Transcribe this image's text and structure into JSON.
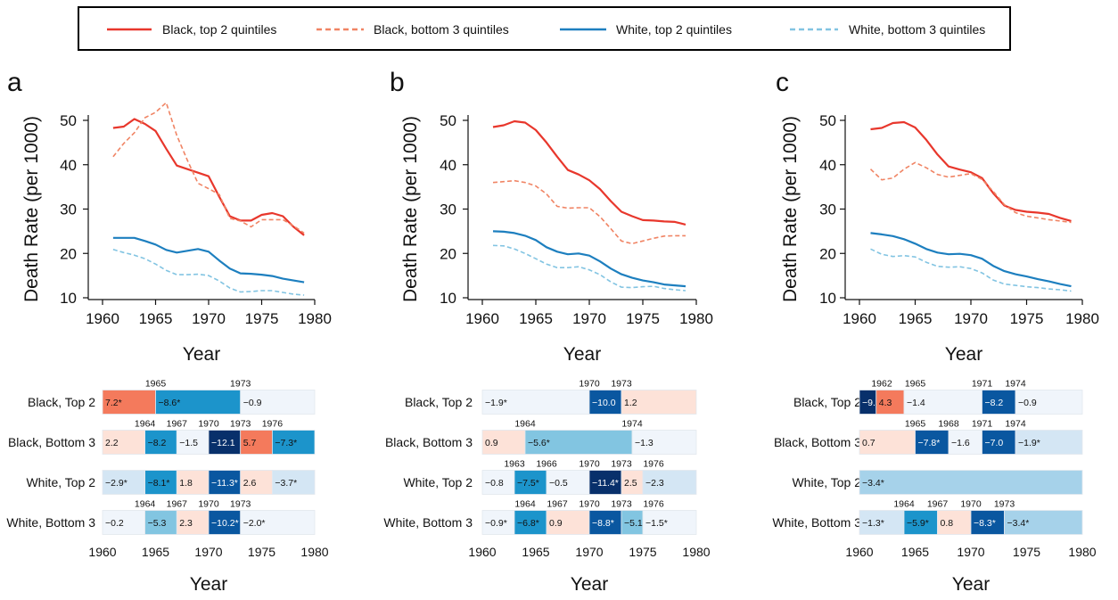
{
  "legend": [
    {
      "label": "Black, top 2 quintiles",
      "color": "#e8372c",
      "dash": false
    },
    {
      "label": "Black, bottom 3 quintiles",
      "color": "#f08464",
      "dash": true
    },
    {
      "label": "White, top 2 quintiles",
      "color": "#1d7fbf",
      "dash": false
    },
    {
      "label": "White, bottom 3 quintiles",
      "color": "#82c4e2",
      "dash": true
    }
  ],
  "seg_colors": {
    "pos_strong": "#f47a5c",
    "pos_light": "#fde2d8",
    "neg_vlight": "#f0f5fb",
    "neg_light": "#d4e6f4",
    "neg_mid1": "#a6d2ea",
    "neg_mid2": "#82c5e1",
    "neg_mid3": "#1c94cb",
    "neg_dark": "#0a57a0",
    "neg_darkest": "#08306b"
  },
  "chart_data": [
    {
      "type": "line",
      "panel_label": "a",
      "xlabel": "Year",
      "ylabel": "Death Rate (per 1000)",
      "xlim": [
        1960,
        1980
      ],
      "ylim": [
        10,
        50
      ],
      "xticks": [
        1960,
        1965,
        1970,
        1975,
        1980
      ],
      "yticks": [
        10,
        20,
        30,
        40,
        50
      ],
      "x": [
        1961,
        1962,
        1963,
        1964,
        1965,
        1966,
        1967,
        1968,
        1969,
        1970,
        1971,
        1972,
        1973,
        1974,
        1975,
        1976,
        1977,
        1978,
        1979
      ],
      "series": [
        {
          "name": "Black, top 2 quintiles",
          "values": [
            48.3,
            48.6,
            50.3,
            49.2,
            47.6,
            43.6,
            39.8,
            39.0,
            38.2,
            37.4,
            32.8,
            28.4,
            27.4,
            27.4,
            28.7,
            29.1,
            28.4,
            26.0,
            24.1
          ]
        },
        {
          "name": "Black, bottom 3 quintiles",
          "values": [
            41.8,
            44.8,
            47.2,
            50.6,
            51.8,
            54.0,
            46.6,
            41.0,
            35.8,
            34.6,
            33.3,
            27.9,
            27.3,
            26.0,
            27.6,
            27.6,
            27.6,
            26.2,
            24.6
          ]
        },
        {
          "name": "White, top 2 quintiles",
          "values": [
            23.5,
            23.5,
            23.5,
            22.8,
            22.0,
            20.8,
            20.2,
            20.6,
            21.0,
            20.4,
            18.4,
            16.6,
            15.5,
            15.4,
            15.2,
            14.9,
            14.3,
            13.9,
            13.5
          ]
        },
        {
          "name": "White, bottom 3 quintiles",
          "values": [
            20.9,
            20.2,
            19.6,
            18.8,
            17.6,
            16.2,
            15.2,
            15.2,
            15.3,
            15.0,
            13.8,
            12.2,
            11.3,
            11.4,
            11.6,
            11.6,
            11.2,
            10.8,
            10.6
          ]
        }
      ],
      "segments": {
        "xlabel": "Year",
        "xlim": [
          1960,
          1980
        ],
        "xticks": [
          1960,
          1965,
          1970,
          1975,
          1980
        ],
        "rows": [
          {
            "label": "Black, Top 2",
            "breaks": [
              1965,
              1973
            ],
            "segs": [
              {
                "x0": 1960,
                "x1": 1965,
                "text": "7.2*",
                "tone": "pos_strong"
              },
              {
                "x0": 1965,
                "x1": 1973,
                "text": "−8.6*",
                "tone": "neg_mid3"
              },
              {
                "x0": 1973,
                "x1": 1980,
                "text": "−0.9",
                "tone": "neg_vlight"
              }
            ]
          },
          {
            "label": "Black, Bottom 3",
            "breaks": [
              1964,
              1967,
              1970,
              1973,
              1976
            ],
            "segs": [
              {
                "x0": 1960,
                "x1": 1964,
                "text": "2.2",
                "tone": "pos_light"
              },
              {
                "x0": 1964,
                "x1": 1967,
                "text": "−8.2",
                "tone": "neg_mid3"
              },
              {
                "x0": 1967,
                "x1": 1970,
                "text": "−1.5",
                "tone": "neg_vlight"
              },
              {
                "x0": 1970,
                "x1": 1973,
                "text": "−12.1",
                "tone": "neg_darkest"
              },
              {
                "x0": 1973,
                "x1": 1976,
                "text": "5.7",
                "tone": "pos_strong"
              },
              {
                "x0": 1976,
                "x1": 1980,
                "text": "−7.3*",
                "tone": "neg_mid3"
              }
            ]
          },
          {
            "label": "White, Top 2",
            "breaks": [],
            "segs": [
              {
                "x0": 1960,
                "x1": 1964,
                "text": "−2.9*",
                "tone": "neg_light"
              },
              {
                "x0": 1964,
                "x1": 1967,
                "text": "−8.1*",
                "tone": "neg_mid3"
              },
              {
                "x0": 1967,
                "x1": 1970,
                "text": "1.8",
                "tone": "pos_light"
              },
              {
                "x0": 1970,
                "x1": 1973,
                "text": "−11.3*",
                "tone": "neg_dark"
              },
              {
                "x0": 1973,
                "x1": 1976,
                "text": "2.6",
                "tone": "pos_light"
              },
              {
                "x0": 1976,
                "x1": 1980,
                "text": "−3.7*",
                "tone": "neg_light"
              }
            ]
          },
          {
            "label": "White, Bottom 3",
            "breaks": [
              1964,
              1967,
              1970,
              1973
            ],
            "segs": [
              {
                "x0": 1960,
                "x1": 1964,
                "text": "−0.2",
                "tone": "neg_vlight"
              },
              {
                "x0": 1964,
                "x1": 1967,
                "text": "−5.3",
                "tone": "neg_mid2"
              },
              {
                "x0": 1967,
                "x1": 1970,
                "text": "2.3",
                "tone": "pos_light"
              },
              {
                "x0": 1970,
                "x1": 1973,
                "text": "−10.2*",
                "tone": "neg_dark"
              },
              {
                "x0": 1973,
                "x1": 1980,
                "text": "−2.0*",
                "tone": "neg_vlight"
              }
            ]
          }
        ]
      }
    },
    {
      "type": "line",
      "panel_label": "b",
      "xlabel": "Year",
      "ylabel": "Death Rate (per 1000)",
      "xlim": [
        1960,
        1980
      ],
      "ylim": [
        10,
        50
      ],
      "xticks": [
        1960,
        1965,
        1970,
        1975,
        1980
      ],
      "yticks": [
        10,
        20,
        30,
        40,
        50
      ],
      "x": [
        1961,
        1962,
        1963,
        1964,
        1965,
        1966,
        1967,
        1968,
        1969,
        1970,
        1971,
        1972,
        1973,
        1974,
        1975,
        1976,
        1977,
        1978,
        1979
      ],
      "series": [
        {
          "name": "Black, top 2 quintiles",
          "values": [
            48.5,
            48.9,
            49.8,
            49.5,
            47.8,
            45.0,
            41.8,
            38.8,
            37.8,
            36.5,
            34.5,
            31.8,
            29.4,
            28.4,
            27.5,
            27.4,
            27.2,
            27.1,
            26.5
          ]
        },
        {
          "name": "Black, bottom 3 quintiles",
          "values": [
            36.0,
            36.2,
            36.4,
            36.0,
            35.2,
            33.4,
            30.6,
            30.2,
            30.3,
            30.3,
            28.3,
            25.6,
            22.8,
            22.2,
            22.8,
            23.4,
            23.9,
            24.0,
            24.0
          ]
        },
        {
          "name": "White, top 2 quintiles",
          "values": [
            25.0,
            24.9,
            24.6,
            24.0,
            23.0,
            21.4,
            20.4,
            19.8,
            20.0,
            19.5,
            18.2,
            16.6,
            15.3,
            14.5,
            13.9,
            13.5,
            13.0,
            12.8,
            12.6
          ]
        },
        {
          "name": "White, bottom 3 quintiles",
          "values": [
            21.8,
            21.7,
            21.0,
            20.0,
            18.8,
            17.6,
            16.8,
            16.8,
            17.0,
            16.3,
            15.2,
            13.6,
            12.4,
            12.3,
            12.5,
            12.6,
            12.1,
            11.8,
            11.6
          ]
        }
      ],
      "segments": {
        "xlabel": "Year",
        "xlim": [
          1960,
          1980
        ],
        "xticks": [
          1960,
          1965,
          1970,
          1975,
          1980
        ],
        "rows": [
          {
            "label": "Black, Top 2",
            "breaks": [
              1970,
              1973
            ],
            "segs": [
              {
                "x0": 1960,
                "x1": 1970,
                "text": "−1.9*",
                "tone": "neg_vlight"
              },
              {
                "x0": 1970,
                "x1": 1973,
                "text": "−10.0",
                "tone": "neg_dark"
              },
              {
                "x0": 1973,
                "x1": 1980,
                "text": "1.2",
                "tone": "pos_light"
              }
            ]
          },
          {
            "label": "Black, Bottom 3",
            "breaks": [
              1964,
              1974
            ],
            "segs": [
              {
                "x0": 1960,
                "x1": 1964,
                "text": "0.9",
                "tone": "pos_light"
              },
              {
                "x0": 1964,
                "x1": 1974,
                "text": "−5.6*",
                "tone": "neg_mid2"
              },
              {
                "x0": 1974,
                "x1": 1980,
                "text": "−1.3",
                "tone": "neg_vlight"
              }
            ]
          },
          {
            "label": "White, Top 2",
            "breaks": [
              1963,
              1966,
              1970,
              1973,
              1976
            ],
            "segs": [
              {
                "x0": 1960,
                "x1": 1963,
                "text": "−0.8",
                "tone": "neg_vlight"
              },
              {
                "x0": 1963,
                "x1": 1966,
                "text": "−7.5*",
                "tone": "neg_mid3"
              },
              {
                "x0": 1966,
                "x1": 1970,
                "text": "−0.5",
                "tone": "neg_vlight"
              },
              {
                "x0": 1970,
                "x1": 1973,
                "text": "−11.4*",
                "tone": "neg_darkest"
              },
              {
                "x0": 1973,
                "x1": 1975,
                "text": "2.5",
                "tone": "pos_light"
              },
              {
                "x0": 1975,
                "x1": 1980,
                "text": "−2.3",
                "tone": "neg_light"
              }
            ]
          },
          {
            "label": "White, Bottom 3",
            "breaks": [
              1964,
              1967,
              1970,
              1973,
              1976
            ],
            "segs": [
              {
                "x0": 1960,
                "x1": 1963,
                "text": "−0.9*",
                "tone": "neg_vlight"
              },
              {
                "x0": 1963,
                "x1": 1966,
                "text": "−6.8*",
                "tone": "neg_mid3"
              },
              {
                "x0": 1966,
                "x1": 1970,
                "text": "0.9",
                "tone": "pos_light"
              },
              {
                "x0": 1970,
                "x1": 1973,
                "text": "−8.8*",
                "tone": "neg_dark"
              },
              {
                "x0": 1973,
                "x1": 1975,
                "text": "−5.1*",
                "tone": "neg_mid2"
              },
              {
                "x0": 1975,
                "x1": 1980,
                "text": "−1.5*",
                "tone": "neg_vlight"
              }
            ]
          }
        ]
      }
    },
    {
      "type": "line",
      "panel_label": "c",
      "xlabel": "Year",
      "ylabel": "Death Rate (per 1000)",
      "xlim": [
        1960,
        1980
      ],
      "ylim": [
        10,
        50
      ],
      "xticks": [
        1960,
        1965,
        1970,
        1975,
        1980
      ],
      "yticks": [
        10,
        20,
        30,
        40,
        50
      ],
      "x": [
        1961,
        1962,
        1963,
        1964,
        1965,
        1966,
        1967,
        1968,
        1969,
        1970,
        1971,
        1972,
        1973,
        1974,
        1975,
        1976,
        1977,
        1978,
        1979
      ],
      "series": [
        {
          "name": "Black, top 2 quintiles",
          "values": [
            48.0,
            48.3,
            49.4,
            49.6,
            48.4,
            45.6,
            42.3,
            39.6,
            38.9,
            38.3,
            37.0,
            33.6,
            30.8,
            29.8,
            29.4,
            29.2,
            28.9,
            28.0,
            27.3
          ]
        },
        {
          "name": "Black, bottom 3 quintiles",
          "values": [
            39.0,
            36.6,
            37.0,
            39.0,
            40.5,
            39.3,
            37.8,
            37.2,
            37.6,
            38.0,
            36.7,
            34.0,
            31.0,
            29.2,
            28.4,
            28.0,
            27.6,
            27.3,
            27.0
          ]
        },
        {
          "name": "White, top 2 quintiles",
          "values": [
            24.6,
            24.3,
            23.9,
            23.2,
            22.2,
            21.0,
            20.2,
            19.8,
            19.9,
            19.6,
            18.8,
            17.2,
            16.0,
            15.3,
            14.8,
            14.2,
            13.7,
            13.1,
            12.6
          ]
        },
        {
          "name": "White, bottom 3 quintiles",
          "values": [
            21.0,
            19.8,
            19.3,
            19.5,
            19.2,
            18.0,
            17.1,
            16.9,
            17.0,
            16.6,
            15.6,
            14.0,
            13.1,
            12.8,
            12.5,
            12.3,
            12.0,
            11.8,
            11.5
          ]
        }
      ],
      "segments": {
        "xlabel": "Year",
        "xlim": [
          1960,
          1980
        ],
        "xticks": [
          1960,
          1965,
          1970,
          1975,
          1980
        ],
        "rows": [
          {
            "label": "Black, Top 2",
            "breaks": [
              1962,
              1965,
              1971,
              1974
            ],
            "segs": [
              {
                "x0": 1960,
                "x1": 1961.5,
                "text": "−9.3*",
                "tone": "neg_darkest"
              },
              {
                "x0": 1961.5,
                "x1": 1964,
                "text": "4.3",
                "tone": "pos_strong"
              },
              {
                "x0": 1964,
                "x1": 1971,
                "text": "−1.4",
                "tone": "neg_vlight"
              },
              {
                "x0": 1971,
                "x1": 1974,
                "text": "−8.2",
                "tone": "neg_dark"
              },
              {
                "x0": 1974,
                "x1": 1980,
                "text": "−0.9",
                "tone": "neg_vlight"
              }
            ]
          },
          {
            "label": "Black, Bottom 3",
            "breaks": [
              1965,
              1968,
              1971,
              1974
            ],
            "segs": [
              {
                "x0": 1960,
                "x1": 1965,
                "text": "0.7",
                "tone": "pos_light"
              },
              {
                "x0": 1965,
                "x1": 1968,
                "text": "−7.8*",
                "tone": "neg_dark"
              },
              {
                "x0": 1968,
                "x1": 1971,
                "text": "−1.6",
                "tone": "neg_vlight"
              },
              {
                "x0": 1971,
                "x1": 1974,
                "text": "−7.0",
                "tone": "neg_dark"
              },
              {
                "x0": 1974,
                "x1": 1980,
                "text": "−1.9*",
                "tone": "neg_light"
              }
            ]
          },
          {
            "label": "White, Top 2",
            "breaks": [],
            "segs": [
              {
                "x0": 1960,
                "x1": 1980,
                "text": "−3.4*",
                "tone": "neg_mid1"
              }
            ]
          },
          {
            "label": "White, Bottom 3",
            "breaks": [
              1964,
              1967,
              1970,
              1973
            ],
            "segs": [
              {
                "x0": 1960,
                "x1": 1964,
                "text": "−1.3*",
                "tone": "neg_light"
              },
              {
                "x0": 1964,
                "x1": 1967,
                "text": "−5.9*",
                "tone": "neg_mid3"
              },
              {
                "x0": 1967,
                "x1": 1970,
                "text": "0.8",
                "tone": "pos_light"
              },
              {
                "x0": 1970,
                "x1": 1973,
                "text": "−8.3*",
                "tone": "neg_dark"
              },
              {
                "x0": 1973,
                "x1": 1980,
                "text": "−3.4*",
                "tone": "neg_mid1"
              }
            ]
          }
        ]
      }
    }
  ]
}
